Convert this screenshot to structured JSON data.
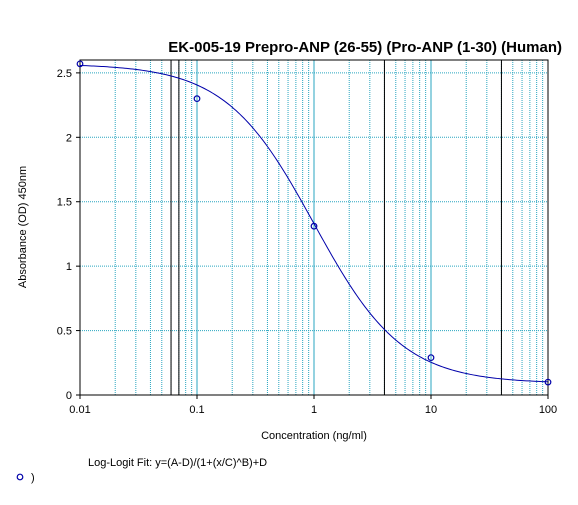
{
  "chart_data": {
    "type": "scatter",
    "title": "EK-005-19 Prepro-ANP (26-55) (Pro-ANP (1-30) (Human)",
    "xlabel": "Concentration (ng/ml)",
    "ylabel": "Absorbance (OD) 450nm",
    "x_scale": "log",
    "xlim": [
      0.01,
      100
    ],
    "ylim": [
      0,
      2.6
    ],
    "x_tick_labels": [
      "0.01",
      "0.1",
      "1",
      "10",
      "100"
    ],
    "y_tick_labels": [
      "0",
      "0.5",
      "1",
      "1.5",
      "2",
      "2.5"
    ],
    "grid": true,
    "series": [
      {
        "x": [
          0.01,
          0.1,
          1,
          10,
          100
        ],
        "y": [
          2.57,
          2.3,
          1.31,
          0.29,
          0.1
        ]
      }
    ],
    "fit_curve": {
      "equation_label": "Log-Logit Fit: y=(A-D)/(1+(x/C)^B)+D",
      "A": 2.57,
      "B": 1.15,
      "C": 1.0,
      "D": 0.09
    },
    "legend_text": ")",
    "colors": {
      "points": "#0000aa",
      "curve": "#0000aa",
      "grid_minor": "#2aa6c0",
      "grid_major": "#000000"
    }
  }
}
